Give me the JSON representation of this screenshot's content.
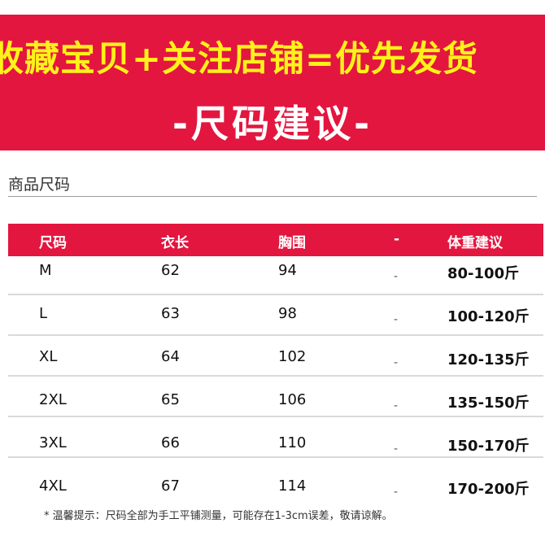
{
  "banner": {
    "headline": "收藏宝贝+关注店铺=优先发货",
    "subtitle": "-尺码建议-"
  },
  "section": {
    "title": "商品尺码"
  },
  "table": {
    "headers": [
      "尺码",
      "衣长",
      "胸围",
      "-",
      "体重建议"
    ],
    "rows": [
      [
        "M",
        "62",
        "94",
        "-",
        "80-100斤"
      ],
      [
        "L",
        "63",
        "98",
        "-",
        "100-120斤"
      ],
      [
        "XL",
        "64",
        "102",
        "-",
        "120-135斤"
      ],
      [
        "2XL",
        "65",
        "106",
        "-",
        "135-150斤"
      ],
      [
        "3XL",
        "66",
        "110",
        "-",
        "150-170斤"
      ],
      [
        "4XL",
        "67",
        "114",
        "-",
        "170-200斤"
      ]
    ]
  },
  "footnote": "* 温馨提示：尺码全部为手工平铺测量，可能存在1-3cm误差，敬请谅解。",
  "colors": {
    "accent": "#e3163f",
    "headline": "#fff11a"
  }
}
